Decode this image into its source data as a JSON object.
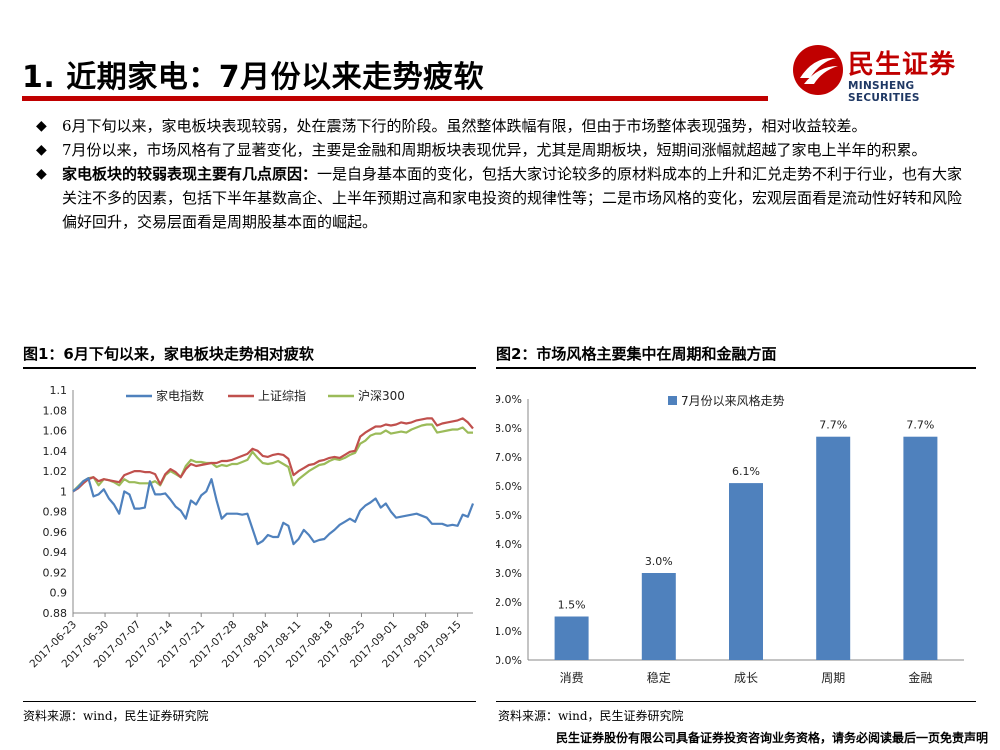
{
  "header": {
    "title": "1. 近期家电：7月份以来走势疲软",
    "logo_cn": "民生证券",
    "logo_en": "MINSHENG SECURITIES"
  },
  "bullets": [
    {
      "bold": "",
      "text": "6月下旬以来，家电板块表现较弱，处在震荡下行的阶段。虽然整体跌幅有限，但由于市场整体表现强势，相对收益较差。"
    },
    {
      "bold": "",
      "text": "7月份以来，市场风格有了显著变化，主要是金融和周期板块表现优异，尤其是周期板块，短期间涨幅就超越了家电上半年的积累。"
    },
    {
      "bold": "家电板块的较弱表现主要有几点原因：",
      "text": "一是自身基本面的变化，包括大家讨论较多的原材料成本的上升和汇兑走势不利于行业，也有大家关注不多的因素，包括下半年基数高企、上半年预期过高和家电投资的规律性等；二是市场风格的变化，宏观层面看是流动性好转和风险偏好回升，交易层面看是周期股基本面的崛起。"
    }
  ],
  "figure1": {
    "caption": "图1：6月下旬以来，家电板块走势相对疲软",
    "source": "资料来源：wind，民生证券研究院"
  },
  "figure2": {
    "caption": "图2：市场风格主要集中在周期和金融方面",
    "source": "资料来源：wind，民生证券研究院"
  },
  "footer": "民生证券股份有限公司具备证券投资咨询业务资格，请务必阅读最后一页免责声明",
  "colors": {
    "brand_red": "#c00000",
    "s1": "#4f81bd",
    "s2": "#c0504d",
    "s3": "#9bbb59",
    "bar": "#4f81bd"
  },
  "chart_data": [
    {
      "type": "line",
      "ylim": [
        0.88,
        1.1
      ],
      "yticks": [
        "1.1",
        "1.08",
        "1.06",
        "1.04",
        "1.02",
        "1",
        "0.98",
        "0.96",
        "0.94",
        "0.92",
        "0.9",
        "0.88"
      ],
      "xticks": [
        "2017-06-23",
        "2017-06-30",
        "2017-07-07",
        "2017-07-14",
        "2017-07-21",
        "2017-07-28",
        "2017-08-04",
        "2017-08-11",
        "2017-08-18",
        "2017-08-25",
        "2017-09-01",
        "2017-09-08",
        "2017-09-15"
      ],
      "legend_position": "top",
      "series": [
        {
          "name": "家电指数",
          "values": [
            1.0,
            1.004,
            1.01,
            1.013,
            0.995,
            0.997,
            1.002,
            0.993,
            0.987,
            0.978,
            1.0,
            0.997,
            0.983,
            0.983,
            0.984,
            1.01,
            0.997,
            0.997,
            0.998,
            0.992,
            0.985,
            0.981,
            0.973,
            0.991,
            0.987,
            0.996,
            1.0,
            1.012,
            0.991,
            0.973,
            0.978,
            0.978,
            0.978,
            0.977,
            0.978,
            0.963,
            0.948,
            0.951,
            0.957,
            0.955,
            0.955,
            0.969,
            0.966,
            0.948,
            0.953,
            0.962,
            0.957,
            0.95,
            0.952,
            0.953,
            0.958,
            0.962,
            0.967,
            0.97,
            0.973,
            0.97,
            0.981,
            0.986,
            0.989,
            0.993,
            0.984,
            0.988,
            0.98,
            0.974,
            0.975,
            0.976,
            0.977,
            0.978,
            0.976,
            0.974,
            0.968,
            0.968,
            0.968,
            0.966,
            0.967,
            0.966,
            0.977,
            0.975,
            0.988
          ]
        },
        {
          "name": "上证综指",
          "values": [
            1.0,
            1.003,
            1.008,
            1.012,
            1.014,
            1.01,
            1.012,
            1.011,
            1.01,
            1.009,
            1.016,
            1.018,
            1.02,
            1.02,
            1.019,
            1.019,
            1.017,
            1.007,
            1.017,
            1.022,
            1.019,
            1.014,
            1.022,
            1.027,
            1.025,
            1.026,
            1.027,
            1.028,
            1.028,
            1.03,
            1.03,
            1.031,
            1.033,
            1.035,
            1.037,
            1.042,
            1.04,
            1.035,
            1.034,
            1.036,
            1.037,
            1.036,
            1.032,
            1.016,
            1.02,
            1.023,
            1.026,
            1.027,
            1.03,
            1.031,
            1.033,
            1.034,
            1.033,
            1.036,
            1.039,
            1.04,
            1.054,
            1.058,
            1.061,
            1.064,
            1.064,
            1.066,
            1.065,
            1.066,
            1.068,
            1.067,
            1.068,
            1.07,
            1.071,
            1.072,
            1.072,
            1.065,
            1.067,
            1.068,
            1.069,
            1.07,
            1.072,
            1.068,
            1.062
          ]
        },
        {
          "name": "沪深300",
          "values": [
            1.0,
            1.005,
            1.01,
            1.013,
            1.014,
            1.006,
            1.012,
            1.011,
            1.009,
            1.006,
            1.012,
            1.009,
            1.009,
            1.008,
            1.008,
            1.008,
            1.01,
            1.006,
            1.016,
            1.02,
            1.017,
            1.014,
            1.025,
            1.031,
            1.029,
            1.029,
            1.028,
            1.028,
            1.024,
            1.026,
            1.025,
            1.027,
            1.027,
            1.029,
            1.031,
            1.039,
            1.033,
            1.028,
            1.027,
            1.028,
            1.03,
            1.027,
            1.024,
            1.006,
            1.012,
            1.016,
            1.02,
            1.023,
            1.026,
            1.027,
            1.03,
            1.032,
            1.031,
            1.033,
            1.036,
            1.038,
            1.047,
            1.05,
            1.055,
            1.057,
            1.057,
            1.06,
            1.057,
            1.058,
            1.059,
            1.058,
            1.061,
            1.063,
            1.065,
            1.066,
            1.066,
            1.058,
            1.059,
            1.06,
            1.061,
            1.061,
            1.063,
            1.058,
            1.058
          ]
        }
      ]
    },
    {
      "type": "bar",
      "categories": [
        "消费",
        "稳定",
        "成长",
        "周期",
        "金融"
      ],
      "values": [
        1.5,
        3.0,
        6.1,
        7.7,
        7.7
      ],
      "value_labels": [
        "1.5%",
        "3.0%",
        "6.1%",
        "7.7%",
        "7.7%"
      ],
      "ylim": [
        0,
        9
      ],
      "yticks": [
        "9.0%",
        "8.0%",
        "7.0%",
        "6.0%",
        "5.0%",
        "4.0%",
        "3.0%",
        "2.0%",
        "1.0%",
        "0.0%"
      ],
      "series_name": "7月份以来风格走势",
      "legend_position": "top"
    }
  ]
}
